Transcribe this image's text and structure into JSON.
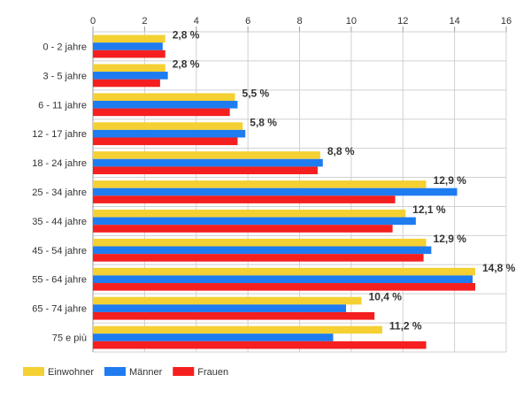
{
  "chart_data": {
    "type": "bar",
    "orientation": "horizontal",
    "categories": [
      "0 - 2 jahre",
      "3 - 5 jahre",
      "6 - 11 jahre",
      "12 - 17 jahre",
      "18 - 24 jahre",
      "25 - 34 jahre",
      "35 - 44 jahre",
      "45 - 54 jahre",
      "55 - 64 jahre",
      "65 - 74 jahre",
      "75 e più"
    ],
    "series": [
      {
        "name": "Einwohner",
        "color": "#f5d033",
        "values": [
          2.8,
          2.8,
          5.5,
          5.8,
          8.8,
          12.9,
          12.1,
          12.9,
          14.8,
          10.4,
          11.2
        ]
      },
      {
        "name": "Männer",
        "color": "#1e7cf0",
        "values": [
          2.7,
          2.9,
          5.6,
          5.9,
          8.9,
          14.1,
          12.5,
          13.1,
          14.7,
          9.8,
          9.3
        ]
      },
      {
        "name": "Frauen",
        "color": "#f51f1f",
        "values": [
          2.8,
          2.6,
          5.3,
          5.6,
          8.7,
          11.7,
          11.6,
          12.8,
          14.8,
          10.9,
          12.9
        ]
      }
    ],
    "data_labels": [
      "2,8 %",
      "2,8 %",
      "5,5 %",
      "5,8 %",
      "8,8 %",
      "12,9 %",
      "12,1 %",
      "12,9 %",
      "14,8 %",
      "10,4 %",
      "11,2 %"
    ],
    "x_ticks": [
      "0",
      "2",
      "4",
      "6",
      "8",
      "10",
      "12",
      "14",
      "16"
    ],
    "xlim": [
      0,
      16
    ],
    "axis_position": "top",
    "grid": true,
    "legend_position": "bottom-left"
  }
}
